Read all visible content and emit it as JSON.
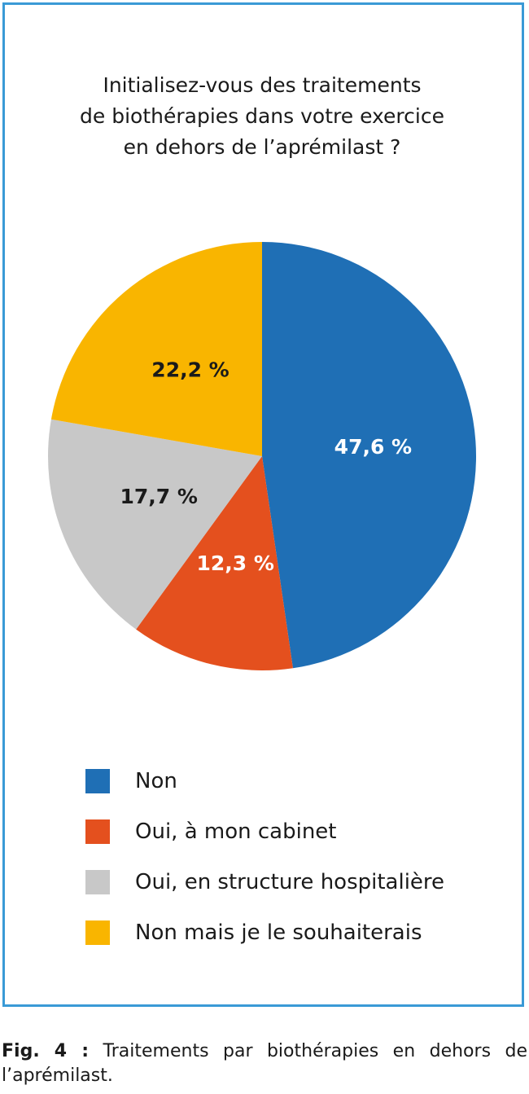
{
  "chart_data": {
    "type": "pie",
    "title": "Initialisez-vous des traitements\nde biothérapies dans votre exercice\nen dehors de l’aprémilast ?",
    "categories": [
      "Non",
      "Oui, à mon cabinet",
      "Oui, en structure hospitalière",
      "Non mais je le souhaiterais"
    ],
    "values": [
      47.6,
      12.3,
      17.7,
      22.2
    ],
    "value_labels": [
      "47,6 %",
      "12,3 %",
      "17,7 %",
      "22,2 %"
    ],
    "colors": [
      "#1f6fb5",
      "#e4501e",
      "#c8c8c8",
      "#f9b500"
    ]
  },
  "caption": {
    "label": "Fig. 4 :",
    "text": "Traitements par biothérapies en dehors de l’aprémilast."
  }
}
